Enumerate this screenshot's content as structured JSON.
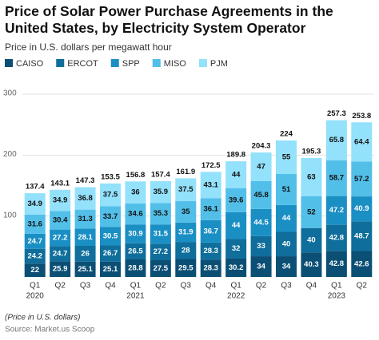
{
  "chart_data": {
    "type": "stacked_bar",
    "title": "Price of Solar Power Purchase Agreements in the United States, by Electricity System Operator",
    "subtitle": "Price in U.S. dollars per megawatt hour",
    "categories": [
      "Q1",
      "Q2",
      "Q3",
      "Q4",
      "Q1",
      "Q2",
      "Q3",
      "Q4",
      "Q1",
      "Q2",
      "Q3",
      "Q4",
      "Q1",
      "Q2"
    ],
    "category_groups": [
      "2020",
      null,
      null,
      null,
      "2021",
      null,
      null,
      null,
      "2022",
      null,
      null,
      null,
      "2023",
      null
    ],
    "series": [
      {
        "name": "CAISO",
        "color": "#0b4f75",
        "values": [
          22,
          25.9,
          25.1,
          25.1,
          28.8,
          27.5,
          29.5,
          28.3,
          30.2,
          34,
          34,
          40.3,
          42.8,
          42.6
        ]
      },
      {
        "name": "ERCOT",
        "color": "#0f6e9b",
        "values": [
          24.2,
          24.7,
          26,
          26.7,
          26.5,
          27.2,
          28,
          28.3,
          32,
          33,
          40,
          40,
          42.8,
          48.7
        ]
      },
      {
        "name": "SPP",
        "color": "#1a8fc4",
        "values": [
          24.7,
          27.2,
          28.1,
          30.5,
          30.9,
          31.5,
          31.9,
          36.7,
          44,
          44.5,
          44,
          null,
          47.2,
          40.9
        ]
      },
      {
        "name": "MISO",
        "color": "#52bfe9",
        "values": [
          31.6,
          30.4,
          31.3,
          33.7,
          34.6,
          35.3,
          35,
          36.1,
          39.6,
          45.8,
          51,
          52,
          58.7,
          57.2
        ]
      },
      {
        "name": "PJM",
        "color": "#93e1fb",
        "values": [
          34.9,
          34.9,
          36.8,
          37.5,
          36,
          35.9,
          37.5,
          43.1,
          44,
          47,
          55,
          63,
          65.8,
          64.4
        ]
      }
    ],
    "totals": [
      137.4,
      143.1,
      147.3,
      153.5,
      156.8,
      157.4,
      161.9,
      172.5,
      189.8,
      204.3,
      224,
      195.3,
      257.3,
      253.8
    ],
    "ylim": [
      0,
      300
    ],
    "yticks": [
      100,
      200,
      300
    ],
    "grid": true,
    "footnote": "(Price in U.S. dollars)",
    "source": "Source: Market.us Scoop"
  }
}
